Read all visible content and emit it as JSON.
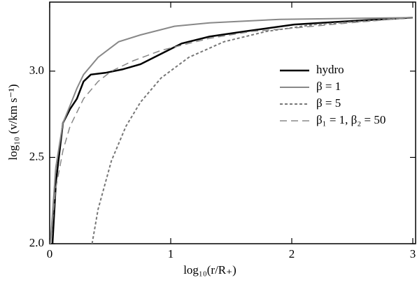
{
  "chart_data": {
    "type": "line",
    "x_label": "log₁₀(r/R₊)",
    "y_label": "log₁₀ (v/km s⁻¹)",
    "xlim": [
      0,
      3
    ],
    "ylim": [
      2,
      3.4
    ],
    "xticks": [
      0,
      1,
      2,
      3
    ],
    "yticks": [
      {
        "value": 2,
        "label": "2.0"
      },
      {
        "value": 2.5,
        "label": "2.5"
      },
      {
        "value": 3,
        "label": "3.0"
      }
    ],
    "legend": "right",
    "series": [
      {
        "name": "hydro",
        "color": "#000000",
        "dash": "solid",
        "width": 2.5,
        "x": [
          0.023,
          0.052,
          0.11,
          0.168,
          0.225,
          0.28,
          0.34,
          0.46,
          0.6,
          0.75,
          0.92,
          1.09,
          1.32,
          1.61,
          2.02,
          2.48,
          3.0
        ],
        "values": [
          2.0,
          2.36,
          2.7,
          2.78,
          2.84,
          2.94,
          2.98,
          2.99,
          3.01,
          3.04,
          3.1,
          3.16,
          3.2,
          3.23,
          3.27,
          3.29,
          3.31
        ]
      },
      {
        "name": "β = 1",
        "color": "#888888",
        "dash": "solid",
        "width": 2,
        "x": [
          0.006,
          0.05,
          0.11,
          0.168,
          0.225,
          0.28,
          0.4,
          0.57,
          0.75,
          1.03,
          1.32,
          1.9,
          3.0
        ],
        "values": [
          2.0,
          2.44,
          2.7,
          2.8,
          2.9,
          2.98,
          3.08,
          3.17,
          3.21,
          3.26,
          3.28,
          3.3,
          3.31
        ]
      },
      {
        "name": "β = 5",
        "color": "#777777",
        "dash": "dotted",
        "width": 2,
        "x": [
          0.35,
          0.4,
          0.51,
          0.63,
          0.75,
          0.92,
          1.15,
          1.44,
          1.79,
          2.19,
          2.6,
          3.0
        ],
        "values": [
          2.0,
          2.2,
          2.48,
          2.68,
          2.82,
          2.96,
          3.08,
          3.17,
          3.23,
          3.27,
          3.29,
          3.31
        ]
      },
      {
        "name": "β₁ = 1,  β₂ = 50",
        "color": "#888888",
        "dash": "dashed",
        "width": 1.5,
        "x": [
          0.006,
          0.05,
          0.11,
          0.168,
          0.28,
          0.4,
          0.51,
          0.69,
          0.92,
          1.09,
          1.32,
          1.67,
          2.02,
          2.48,
          3.0
        ],
        "values": [
          2.0,
          2.32,
          2.54,
          2.68,
          2.84,
          2.94,
          3.0,
          3.06,
          3.12,
          3.15,
          3.19,
          3.23,
          3.25,
          3.28,
          3.31
        ]
      }
    ]
  }
}
